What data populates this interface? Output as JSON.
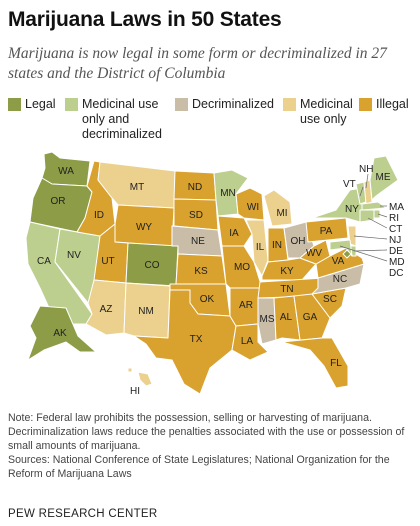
{
  "header": {
    "title": "Marijuana Laws in 50 States",
    "subtitle": "Marijuana is now legal in some form or decriminalized in 27 states and the District of Columbia"
  },
  "legend": [
    {
      "key": "legal",
      "label": "Legal",
      "color": "#8c9c47"
    },
    {
      "key": "medicinal_decrim",
      "label": "Medicinal use\nonly and\ndecriminalized",
      "color": "#bccf8f"
    },
    {
      "key": "decriminalized",
      "label": "Decriminalized",
      "color": "#c9bda8"
    },
    {
      "key": "medicinal",
      "label": "Medicinal\nuse only",
      "color": "#ecd08e"
    },
    {
      "key": "illegal",
      "label": "Illegal",
      "color": "#d9a12e"
    }
  ],
  "map": {
    "states": [
      {
        "abbr": "WA",
        "status": "legal"
      },
      {
        "abbr": "OR",
        "status": "legal"
      },
      {
        "abbr": "CA",
        "status": "medicinal_decrim"
      },
      {
        "abbr": "NV",
        "status": "medicinal_decrim"
      },
      {
        "abbr": "ID",
        "status": "illegal"
      },
      {
        "abbr": "MT",
        "status": "medicinal"
      },
      {
        "abbr": "WY",
        "status": "illegal"
      },
      {
        "abbr": "UT",
        "status": "illegal"
      },
      {
        "abbr": "CO",
        "status": "legal"
      },
      {
        "abbr": "AZ",
        "status": "medicinal"
      },
      {
        "abbr": "NM",
        "status": "medicinal"
      },
      {
        "abbr": "ND",
        "status": "illegal"
      },
      {
        "abbr": "SD",
        "status": "illegal"
      },
      {
        "abbr": "NE",
        "status": "decriminalized"
      },
      {
        "abbr": "KS",
        "status": "illegal"
      },
      {
        "abbr": "OK",
        "status": "illegal"
      },
      {
        "abbr": "TX",
        "status": "illegal"
      },
      {
        "abbr": "MN",
        "status": "medicinal_decrim"
      },
      {
        "abbr": "IA",
        "status": "illegal"
      },
      {
        "abbr": "MO",
        "status": "illegal"
      },
      {
        "abbr": "AR",
        "status": "illegal"
      },
      {
        "abbr": "LA",
        "status": "illegal"
      },
      {
        "abbr": "WI",
        "status": "illegal"
      },
      {
        "abbr": "IL",
        "status": "medicinal"
      },
      {
        "abbr": "MI",
        "status": "medicinal"
      },
      {
        "abbr": "IN",
        "status": "illegal"
      },
      {
        "abbr": "OH",
        "status": "decriminalized"
      },
      {
        "abbr": "KY",
        "status": "illegal"
      },
      {
        "abbr": "TN",
        "status": "illegal"
      },
      {
        "abbr": "MS",
        "status": "decriminalized"
      },
      {
        "abbr": "AL",
        "status": "illegal"
      },
      {
        "abbr": "GA",
        "status": "illegal"
      },
      {
        "abbr": "FL",
        "status": "illegal"
      },
      {
        "abbr": "SC",
        "status": "illegal"
      },
      {
        "abbr": "NC",
        "status": "decriminalized"
      },
      {
        "abbr": "VA",
        "status": "illegal"
      },
      {
        "abbr": "WV",
        "status": "illegal"
      },
      {
        "abbr": "PA",
        "status": "illegal"
      },
      {
        "abbr": "NY",
        "status": "medicinal_decrim"
      },
      {
        "abbr": "VT",
        "status": "medicinal_decrim"
      },
      {
        "abbr": "NH",
        "status": "medicinal"
      },
      {
        "abbr": "ME",
        "status": "medicinal_decrim"
      },
      {
        "abbr": "MA",
        "status": "medicinal_decrim"
      },
      {
        "abbr": "RI",
        "status": "medicinal_decrim"
      },
      {
        "abbr": "CT",
        "status": "medicinal_decrim"
      },
      {
        "abbr": "NJ",
        "status": "medicinal"
      },
      {
        "abbr": "DE",
        "status": "medicinal_decrim"
      },
      {
        "abbr": "MD",
        "status": "medicinal_decrim"
      },
      {
        "abbr": "DC",
        "status": "legal"
      },
      {
        "abbr": "AK",
        "status": "legal"
      },
      {
        "abbr": "HI",
        "status": "medicinal"
      }
    ]
  },
  "notes": {
    "note": "Note: Federal law prohibits the possession, selling or harvesting of marijuana. Decriminalization laws reduce the penalties associated with the use or possession of small amounts of marijuana.",
    "sources": "Sources: National Conference of State Legislatures; National Organization for the Reform of Marijuana Laws"
  },
  "footer": {
    "source_label": "PEW RESEARCH CENTER"
  }
}
